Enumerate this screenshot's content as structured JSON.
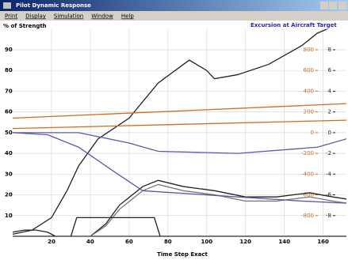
{
  "window": {
    "title": "Pilot Dynamic Response",
    "menu": [
      "Print",
      "Display",
      "Simulation",
      "Window",
      "Help"
    ]
  },
  "chart_data": {
    "type": "line",
    "ylabel": "% of Strength",
    "y2label": "Excursion at Aircraft Target",
    "xlabel": "Time Step Exact",
    "xlim": [
      0,
      172
    ],
    "xticks": [
      20,
      40,
      60,
      80,
      100,
      120,
      140,
      160
    ],
    "ylim": [
      0,
      100
    ],
    "yticks": [
      10,
      20,
      30,
      40,
      50,
      60,
      70,
      80,
      90
    ],
    "y2lim": [
      -1000,
      1000
    ],
    "y2ticks": [
      800,
      600,
      400,
      200,
      0,
      -200,
      -400,
      -600,
      -800
    ],
    "y2color": "#d2691e",
    "y3lim": [
      -10,
      10
    ],
    "y3ticks": [
      8,
      6,
      4,
      2,
      0,
      -2,
      -4,
      -6,
      -8
    ],
    "y3color": "#222222",
    "grid": true,
    "series": [
      {
        "color": "#222222",
        "x": [
          0,
          10,
          20,
          28,
          34,
          44,
          60,
          75,
          91,
          100,
          104,
          116,
          132,
          149,
          157,
          172
        ],
        "values": [
          1,
          3,
          9,
          22,
          34,
          47,
          57,
          74,
          85,
          80,
          76,
          78,
          83,
          92,
          98,
          104
        ]
      },
      {
        "color": "#222222",
        "x": [
          40,
          48,
          55,
          67,
          75,
          88,
          104,
          120,
          136,
          153,
          165,
          172
        ],
        "values": [
          0,
          6,
          15,
          24,
          27,
          24,
          22,
          19,
          19,
          21,
          19,
          18
        ]
      },
      {
        "color": "#777777",
        "x": [
          40,
          48,
          55,
          67,
          75,
          88,
          104,
          120,
          136,
          153,
          165,
          172
        ],
        "values": [
          0,
          5,
          13,
          22,
          25,
          22,
          20,
          17,
          17,
          19,
          17,
          16
        ]
      },
      {
        "color": "#5a5aa8",
        "x": [
          0,
          18,
          34,
          51,
          67,
          83,
          116,
          149,
          172
        ],
        "values": [
          50,
          49,
          43,
          32,
          22,
          21,
          19,
          17,
          16
        ]
      },
      {
        "color": "#5a5aa8",
        "x": [
          0,
          34,
          60,
          75,
          116,
          157,
          172
        ],
        "values": [
          50,
          50,
          45,
          41,
          40,
          43,
          47
        ]
      },
      {
        "color": "#d2691e",
        "x": [
          0,
          172
        ],
        "values": [
          57,
          64
        ]
      },
      {
        "color": "#d2691e",
        "x": [
          0,
          172
        ],
        "values": [
          52,
          56
        ]
      },
      {
        "color": "#222222",
        "x": [
          0,
          30,
          33,
          73,
          76,
          172
        ],
        "values": [
          0,
          0,
          9,
          9,
          0,
          0
        ]
      },
      {
        "color": "#222222",
        "x": [
          0,
          6,
          12,
          18,
          22
        ],
        "values": [
          2,
          3,
          3,
          2,
          0
        ]
      }
    ]
  }
}
